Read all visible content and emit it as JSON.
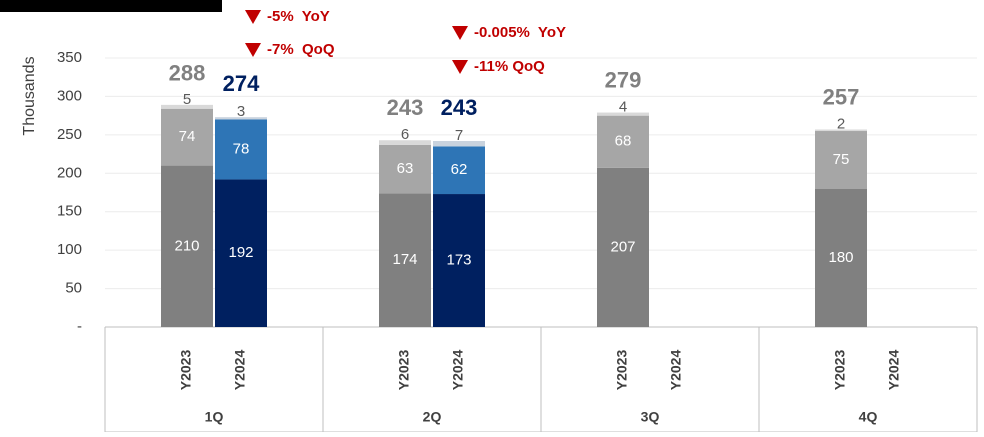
{
  "chart_data": {
    "type": "stacked_bar",
    "y_label": "Thousands",
    "groups": [
      "1Q",
      "2Q",
      "3Q",
      "4Q"
    ],
    "categories": [
      "Y2023",
      "Y2024",
      "Y2023",
      "Y2024",
      "Y2023",
      "Y2024",
      "Y2023",
      "Y2024"
    ],
    "series": [
      {
        "values": [
          210,
          192,
          174,
          173,
          207,
          null,
          180,
          null
        ],
        "colors": [
          "#808080",
          "#002060"
        ]
      },
      {
        "values": [
          74,
          78,
          63,
          62,
          68,
          null,
          75,
          null
        ],
        "colors": [
          "#a6a6a6",
          "#2e75b6"
        ]
      },
      {
        "values": [
          5,
          3,
          6,
          7,
          4,
          null,
          2,
          null
        ],
        "colors": [
          "#d9d9d9",
          "#c9d3de"
        ]
      }
    ],
    "totals": [
      288,
      274,
      243,
      243,
      279,
      null,
      257,
      null
    ],
    "total_colors": [
      "#808080",
      "#002060"
    ],
    "annotations": [
      "-5%  YoY",
      "-7%  QoQ",
      "-0.005%  YoY",
      "-11% QoQ"
    ],
    "annotation_color": "#c00000",
    "ylim": [
      0,
      350
    ],
    "yticks": [
      {
        "value": 0,
        "label": "-"
      },
      50,
      100,
      150,
      200,
      250,
      300,
      350
    ],
    "grid": true
  }
}
